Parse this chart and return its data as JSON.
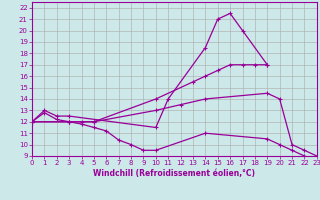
{
  "lines": [
    {
      "x": [
        0,
        1,
        2,
        3,
        10,
        11,
        14,
        15,
        16,
        17,
        19
      ],
      "y": [
        12,
        13,
        12.5,
        12.5,
        11.5,
        14.0,
        18.5,
        21.0,
        21.5,
        20.0,
        17.0
      ],
      "color": "#990099",
      "marker": "+"
    },
    {
      "x": [
        0,
        3,
        4,
        5,
        10,
        13,
        14,
        15,
        16,
        17,
        18,
        19
      ],
      "y": [
        12,
        12.0,
        12.0,
        12.0,
        14.0,
        15.5,
        16.0,
        16.5,
        17.0,
        17.0,
        17.0,
        17.0
      ],
      "color": "#990099",
      "marker": "+"
    },
    {
      "x": [
        0,
        3,
        5,
        10,
        12,
        14,
        19,
        20,
        21,
        22,
        23
      ],
      "y": [
        12,
        12.0,
        12.0,
        13.0,
        13.5,
        14.0,
        14.5,
        14.0,
        10.0,
        9.5,
        9.0
      ],
      "color": "#990099",
      "marker": "+"
    },
    {
      "x": [
        0,
        1,
        2,
        3,
        4,
        5,
        6,
        7,
        8,
        9,
        10,
        14,
        19,
        20,
        21,
        22,
        23
      ],
      "y": [
        12,
        12.8,
        12.2,
        12.0,
        11.8,
        11.5,
        11.2,
        10.4,
        10.0,
        9.5,
        9.5,
        11.0,
        10.5,
        10.0,
        9.5,
        9.0,
        8.5
      ],
      "color": "#990099",
      "marker": "+"
    }
  ],
  "xlim": [
    0,
    23
  ],
  "ylim": [
    9,
    22.5
  ],
  "xticks": [
    0,
    1,
    2,
    3,
    4,
    5,
    6,
    7,
    8,
    9,
    10,
    11,
    12,
    13,
    14,
    15,
    16,
    17,
    18,
    19,
    20,
    21,
    22,
    23
  ],
  "yticks": [
    9,
    10,
    11,
    12,
    13,
    14,
    15,
    16,
    17,
    18,
    19,
    20,
    21,
    22
  ],
  "xlabel": "Windchill (Refroidissement éolien,°C)",
  "bg_color": "#cce8e8",
  "line_color": "#990099",
  "grid_color": "#aaaaaa",
  "tick_fontsize": 5,
  "xlabel_fontsize": 5.5,
  "linewidth": 0.9,
  "markersize": 2.5
}
